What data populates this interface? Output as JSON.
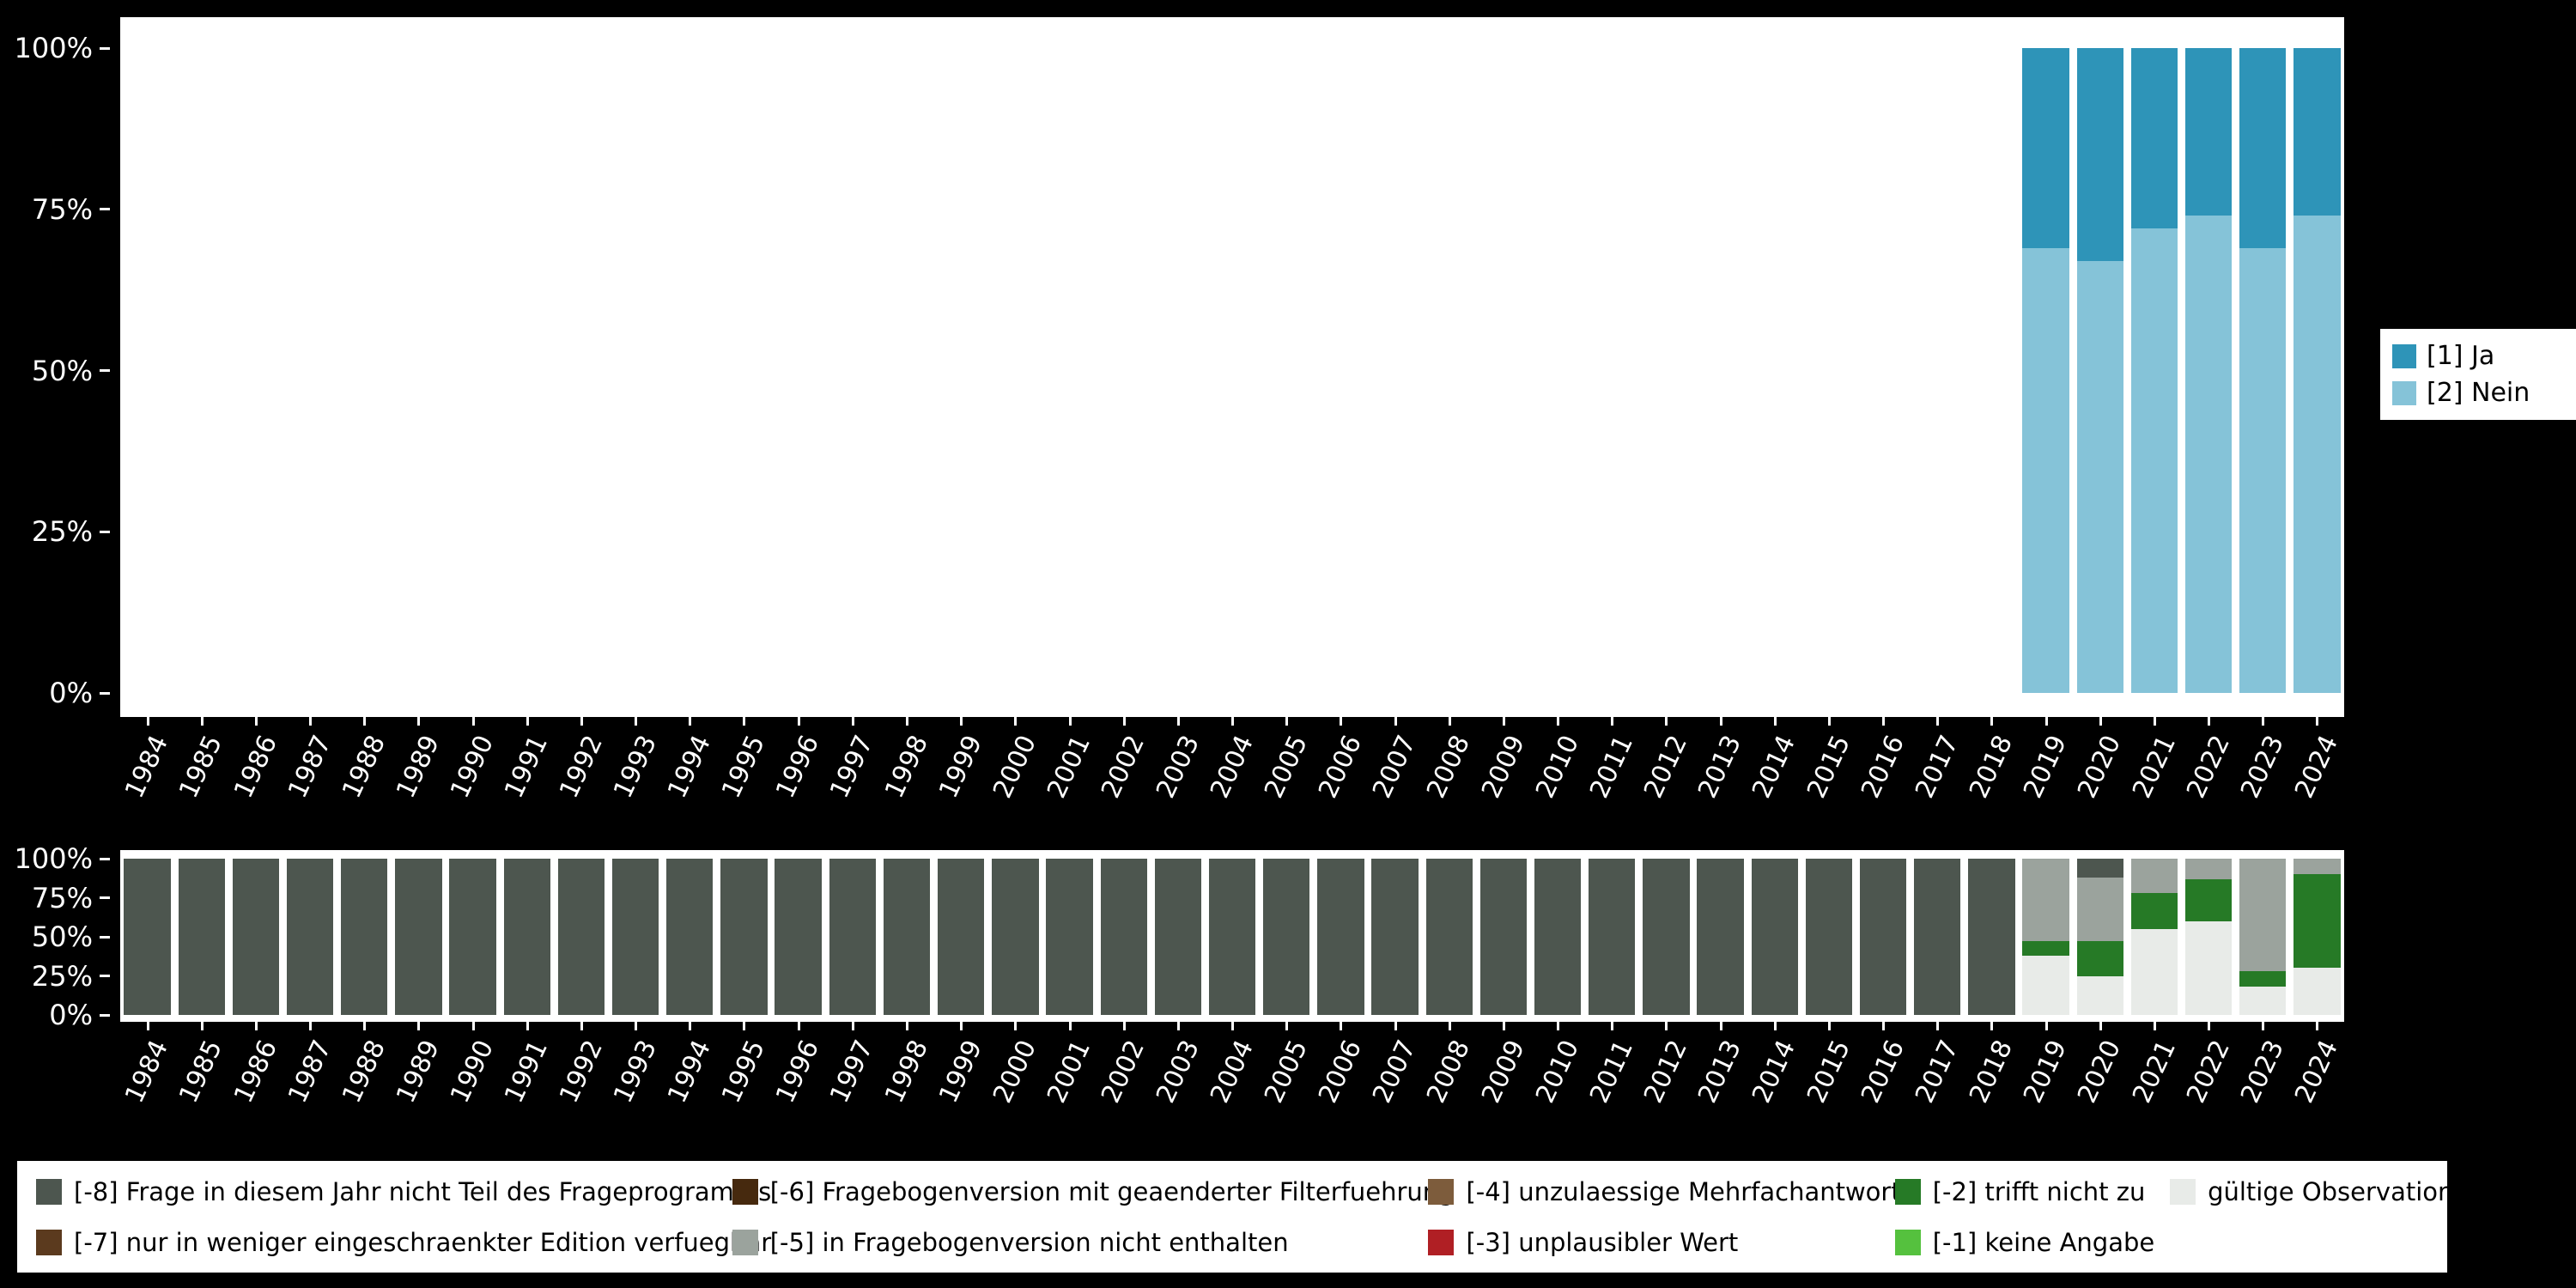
{
  "colors": {
    "background": "#000000",
    "panel": "#ffffff",
    "tick_text": "#ffffff"
  },
  "legend_top": {
    "items": [
      {
        "label": "[1] Ja",
        "color": "#2e94b8"
      },
      {
        "label": "[2] Nein",
        "color": "#85c3d8"
      }
    ]
  },
  "legend_bottom": {
    "items": [
      {
        "label": "[-8] Frage in diesem Jahr nicht Teil des Frageprogramms",
        "color": "#4d564f"
      },
      {
        "label": "[-7] nur in weniger eingeschraenkter Edition verfuegbar",
        "color": "#5b3a1e"
      },
      {
        "label": "[-6] Fragebogenversion mit geaenderter Filterfuehrung",
        "color": "#46290e"
      },
      {
        "label": "[-5] in Fragebogenversion nicht enthalten",
        "color": "#9ba39d"
      },
      {
        "label": "[-4] unzulaessige Mehrfachantwort",
        "color": "#7d5c3c"
      },
      {
        "label": "[-3] unplausibler Wert",
        "color": "#b01f24"
      },
      {
        "label": "[-2] trifft nicht zu",
        "color": "#267a26"
      },
      {
        "label": "[-1] keine Angabe",
        "color": "#55c13e"
      },
      {
        "label": "gültige Observationen",
        "color": "#e8ebe8"
      }
    ]
  },
  "chart_data": [
    {
      "id": "answers",
      "type": "bar",
      "subtype": "stacked-percent",
      "title": "",
      "xlabel": "",
      "ylabel": "",
      "ylim": [
        0,
        100
      ],
      "grid": false,
      "legend_position": "right",
      "yticks": [
        "0%",
        "25%",
        "50%",
        "75%",
        "100%"
      ],
      "categories": [
        "1984",
        "1985",
        "1986",
        "1987",
        "1988",
        "1989",
        "1990",
        "1991",
        "1992",
        "1993",
        "1994",
        "1995",
        "1996",
        "1997",
        "1998",
        "1999",
        "2000",
        "2001",
        "2002",
        "2003",
        "2004",
        "2005",
        "2006",
        "2007",
        "2008",
        "2009",
        "2010",
        "2011",
        "2012",
        "2013",
        "2014",
        "2015",
        "2016",
        "2017",
        "2018",
        "2019",
        "2020",
        "2021",
        "2022",
        "2023",
        "2024"
      ],
      "series": [
        {
          "name": "[2] Nein",
          "color": "#85c3d8",
          "values": [
            null,
            null,
            null,
            null,
            null,
            null,
            null,
            null,
            null,
            null,
            null,
            null,
            null,
            null,
            null,
            null,
            null,
            null,
            null,
            null,
            null,
            null,
            null,
            null,
            null,
            null,
            null,
            null,
            null,
            null,
            null,
            null,
            null,
            null,
            null,
            69,
            67,
            72,
            74,
            69,
            74
          ]
        },
        {
          "name": "[1] Ja",
          "color": "#2e94b8",
          "values": [
            null,
            null,
            null,
            null,
            null,
            null,
            null,
            null,
            null,
            null,
            null,
            null,
            null,
            null,
            null,
            null,
            null,
            null,
            null,
            null,
            null,
            null,
            null,
            null,
            null,
            null,
            null,
            null,
            null,
            null,
            null,
            null,
            null,
            null,
            null,
            31,
            33,
            28,
            26,
            31,
            26
          ]
        }
      ]
    },
    {
      "id": "missings",
      "type": "bar",
      "subtype": "stacked-percent",
      "title": "",
      "xlabel": "",
      "ylabel": "",
      "ylim": [
        0,
        100
      ],
      "grid": false,
      "legend_position": "bottom",
      "yticks": [
        "0%",
        "25%",
        "50%",
        "75%",
        "100%"
      ],
      "categories": [
        "1984",
        "1985",
        "1986",
        "1987",
        "1988",
        "1989",
        "1990",
        "1991",
        "1992",
        "1993",
        "1994",
        "1995",
        "1996",
        "1997",
        "1998",
        "1999",
        "2000",
        "2001",
        "2002",
        "2003",
        "2004",
        "2005",
        "2006",
        "2007",
        "2008",
        "2009",
        "2010",
        "2011",
        "2012",
        "2013",
        "2014",
        "2015",
        "2016",
        "2017",
        "2018",
        "2019",
        "2020",
        "2021",
        "2022",
        "2023",
        "2024"
      ],
      "series": [
        {
          "name": "gültige Observationen",
          "color": "#e8ebe8",
          "values": [
            0,
            0,
            0,
            0,
            0,
            0,
            0,
            0,
            0,
            0,
            0,
            0,
            0,
            0,
            0,
            0,
            0,
            0,
            0,
            0,
            0,
            0,
            0,
            0,
            0,
            0,
            0,
            0,
            0,
            0,
            0,
            0,
            0,
            0,
            0,
            38,
            25,
            55,
            60,
            18,
            30
          ]
        },
        {
          "name": "[-1] keine Angabe",
          "color": "#55c13e",
          "values": [
            0,
            0,
            0,
            0,
            0,
            0,
            0,
            0,
            0,
            0,
            0,
            0,
            0,
            0,
            0,
            0,
            0,
            0,
            0,
            0,
            0,
            0,
            0,
            0,
            0,
            0,
            0,
            0,
            0,
            0,
            0,
            0,
            0,
            0,
            0,
            0,
            0,
            0,
            0,
            0,
            0
          ]
        },
        {
          "name": "[-2] trifft nicht zu",
          "color": "#267a26",
          "values": [
            0,
            0,
            0,
            0,
            0,
            0,
            0,
            0,
            0,
            0,
            0,
            0,
            0,
            0,
            0,
            0,
            0,
            0,
            0,
            0,
            0,
            0,
            0,
            0,
            0,
            0,
            0,
            0,
            0,
            0,
            0,
            0,
            0,
            0,
            0,
            9,
            22,
            23,
            27,
            10,
            60
          ]
        },
        {
          "name": "[-3] unplausibler Wert",
          "color": "#b01f24",
          "values": [
            0,
            0,
            0,
            0,
            0,
            0,
            0,
            0,
            0,
            0,
            0,
            0,
            0,
            0,
            0,
            0,
            0,
            0,
            0,
            0,
            0,
            0,
            0,
            0,
            0,
            0,
            0,
            0,
            0,
            0,
            0,
            0,
            0,
            0,
            0,
            0,
            0,
            0,
            0,
            0,
            0
          ]
        },
        {
          "name": "[-4] unzulaessige Mehrfachantwort",
          "color": "#7d5c3c",
          "values": [
            0,
            0,
            0,
            0,
            0,
            0,
            0,
            0,
            0,
            0,
            0,
            0,
            0,
            0,
            0,
            0,
            0,
            0,
            0,
            0,
            0,
            0,
            0,
            0,
            0,
            0,
            0,
            0,
            0,
            0,
            0,
            0,
            0,
            0,
            0,
            0,
            0,
            0,
            0,
            0,
            0
          ]
        },
        {
          "name": "[-5] in Fragebogenversion nicht enthalten",
          "color": "#9ba39d",
          "values": [
            0,
            0,
            0,
            0,
            0,
            0,
            0,
            0,
            0,
            0,
            0,
            0,
            0,
            0,
            0,
            0,
            0,
            0,
            0,
            0,
            0,
            0,
            0,
            0,
            0,
            0,
            0,
            0,
            0,
            0,
            0,
            0,
            0,
            0,
            0,
            53,
            41,
            22,
            13,
            72,
            10
          ]
        },
        {
          "name": "[-6] Fragebogenversion mit geaenderter Filterfuehrung",
          "color": "#46290e",
          "values": [
            0,
            0,
            0,
            0,
            0,
            0,
            0,
            0,
            0,
            0,
            0,
            0,
            0,
            0,
            0,
            0,
            0,
            0,
            0,
            0,
            0,
            0,
            0,
            0,
            0,
            0,
            0,
            0,
            0,
            0,
            0,
            0,
            0,
            0,
            0,
            0,
            0,
            0,
            0,
            0,
            0
          ]
        },
        {
          "name": "[-7] nur in weniger eingeschraenkter Edition verfuegbar",
          "color": "#5b3a1e",
          "values": [
            0,
            0,
            0,
            0,
            0,
            0,
            0,
            0,
            0,
            0,
            0,
            0,
            0,
            0,
            0,
            0,
            0,
            0,
            0,
            0,
            0,
            0,
            0,
            0,
            0,
            0,
            0,
            0,
            0,
            0,
            0,
            0,
            0,
            0,
            0,
            0,
            0,
            0,
            0,
            0,
            0
          ]
        },
        {
          "name": "[-8] Frage in diesem Jahr nicht Teil des Frageprogramms",
          "color": "#4d564f",
          "values": [
            100,
            100,
            100,
            100,
            100,
            100,
            100,
            100,
            100,
            100,
            100,
            100,
            100,
            100,
            100,
            100,
            100,
            100,
            100,
            100,
            100,
            100,
            100,
            100,
            100,
            100,
            100,
            100,
            100,
            100,
            100,
            100,
            100,
            100,
            100,
            0,
            12,
            0,
            0,
            0,
            0
          ]
        }
      ]
    }
  ]
}
